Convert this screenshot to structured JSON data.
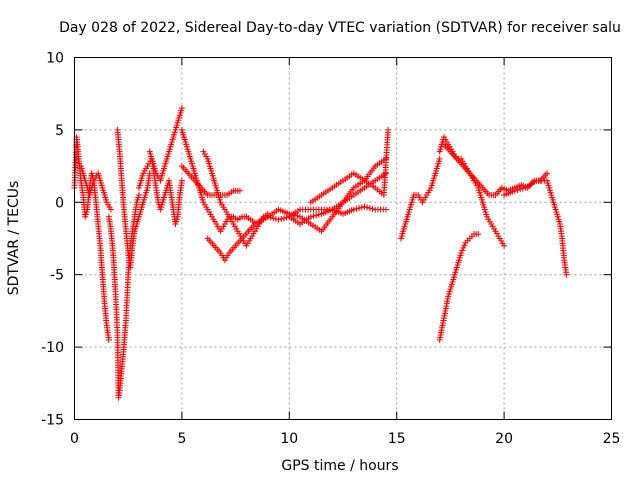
{
  "chart_data": {
    "type": "scatter",
    "title": "Day 028 of 2022, Sidereal Day-to-day VTEC variation (SDTVAR) for receiver salu",
    "xlabel": "GPS time / hours",
    "ylabel": "SDTVAR / TECUs",
    "xlim": [
      0,
      25
    ],
    "ylim": [
      -15,
      10
    ],
    "xticks": [
      "0",
      "5",
      "10",
      "15",
      "20",
      "25"
    ],
    "yticks": [
      "-15",
      "-10",
      "-5",
      "0",
      "5",
      "10"
    ],
    "grid": true,
    "marker": "+",
    "color": "#ff0000",
    "series": [
      {
        "name": "t1",
        "x": [
          0.0,
          0.1,
          0.2,
          0.3,
          0.4,
          0.5,
          0.6,
          0.7,
          0.8,
          0.9,
          1.0,
          1.1,
          1.2,
          1.3,
          1.4,
          1.5,
          1.6
        ],
        "y": [
          1.0,
          4.5,
          3.0,
          1.5,
          0.5,
          -1.0,
          -0.5,
          1.0,
          2.0,
          1.5,
          0.0,
          -1.5,
          -3.0,
          -5.0,
          -7.0,
          -8.5,
          -9.5
        ]
      },
      {
        "name": "t2",
        "x": [
          0.3,
          0.5,
          0.7,
          0.9,
          1.1,
          1.3,
          1.5,
          1.7
        ],
        "y": [
          2.5,
          1.5,
          0.5,
          1.5,
          2.0,
          1.0,
          0.0,
          -0.5
        ]
      },
      {
        "name": "t3",
        "x": [
          1.6,
          1.7,
          1.8,
          1.9,
          2.0,
          2.05,
          2.1,
          2.2,
          2.3,
          2.4,
          2.5,
          2.6,
          2.7,
          2.8,
          2.9,
          3.0
        ],
        "y": [
          -1.0,
          -2.0,
          -3.5,
          -6.0,
          -9.0,
          -13.5,
          -13.0,
          -11.5,
          -10.0,
          -8.0,
          -5.0,
          -3.0,
          -2.0,
          -1.0,
          0.0,
          0.5
        ]
      },
      {
        "name": "t4",
        "x": [
          2.0,
          2.1,
          2.2,
          2.3,
          2.4,
          2.5,
          2.6,
          2.7,
          2.8,
          2.9,
          3.0,
          3.1,
          3.2,
          3.3,
          3.4,
          3.5
        ],
        "y": [
          5.0,
          3.5,
          1.5,
          -0.5,
          -2.0,
          -3.5,
          -4.5,
          -3.0,
          -2.0,
          -1.5,
          -1.0,
          -0.5,
          0.0,
          0.5,
          1.0,
          2.0
        ]
      },
      {
        "name": "t5",
        "x": [
          3.0,
          3.2,
          3.4,
          3.6,
          3.8,
          4.0,
          4.2,
          4.4,
          4.6,
          4.8,
          5.0
        ],
        "y": [
          1.0,
          2.0,
          2.5,
          3.0,
          2.0,
          1.5,
          2.5,
          3.5,
          4.5,
          5.5,
          6.5
        ]
      },
      {
        "name": "t6",
        "x": [
          3.5,
          3.6,
          3.7,
          3.8,
          3.9,
          4.0,
          4.2,
          4.4,
          4.5,
          4.6,
          4.7,
          4.8,
          4.9,
          5.0
        ],
        "y": [
          3.5,
          3.0,
          2.0,
          1.0,
          0.0,
          -0.5,
          0.5,
          1.5,
          0.5,
          -0.5,
          -1.5,
          -1.0,
          0.5,
          1.5
        ]
      },
      {
        "name": "t7",
        "x": [
          5.0,
          5.2,
          5.4,
          5.6,
          5.8,
          6.0,
          6.2,
          6.4,
          6.6,
          6.8,
          7.0,
          7.2,
          7.4,
          7.6,
          7.8,
          8.0
        ],
        "y": [
          5.0,
          4.0,
          3.0,
          2.0,
          1.0,
          0.0,
          -0.5,
          -1.0,
          -1.5,
          -2.0,
          -1.5,
          -1.0,
          -1.0,
          -1.2,
          -1.0,
          -1.0
        ]
      },
      {
        "name": "t8",
        "x": [
          5.0,
          5.3,
          5.6,
          5.9,
          6.2,
          6.5,
          6.8,
          7.1,
          7.4,
          7.7
        ],
        "y": [
          2.5,
          2.0,
          1.5,
          1.0,
          0.5,
          0.5,
          0.5,
          0.5,
          0.8,
          0.8
        ]
      },
      {
        "name": "t9",
        "x": [
          6.0,
          6.2,
          6.4,
          6.6,
          6.8,
          7.0,
          7.2,
          7.4,
          7.6,
          7.8,
          8.0,
          8.2,
          8.4,
          8.6,
          8.8,
          9.0
        ],
        "y": [
          3.5,
          3.0,
          2.0,
          1.0,
          0.0,
          -0.5,
          -1.0,
          -1.5,
          -2.0,
          -2.5,
          -3.0,
          -2.5,
          -2.0,
          -1.5,
          -1.0,
          -0.8
        ]
      },
      {
        "name": "t10",
        "x": [
          6.2,
          6.5,
          6.8,
          7.0,
          7.2,
          7.5,
          7.8,
          8.1,
          8.4,
          8.7,
          9.0
        ],
        "y": [
          -2.5,
          -3.0,
          -3.5,
          -4.0,
          -3.5,
          -3.0,
          -2.5,
          -2.0,
          -1.5,
          -1.2,
          -1.0
        ]
      },
      {
        "name": "t11",
        "x": [
          8.0,
          8.5,
          9.0,
          9.5,
          10.0,
          10.5,
          11.0,
          11.5,
          12.0,
          12.5,
          13.0,
          13.5,
          14.0,
          14.5
        ],
        "y": [
          -1.0,
          -1.5,
          -1.0,
          -1.2,
          -1.0,
          -1.5,
          -1.0,
          -0.8,
          -0.5,
          0.0,
          0.5,
          1.0,
          1.5,
          2.0
        ]
      },
      {
        "name": "t12",
        "x": [
          9.0,
          9.5,
          10.0,
          10.5,
          11.0,
          11.5,
          12.0,
          12.5,
          13.0,
          13.5,
          14.0,
          14.5
        ],
        "y": [
          -1.0,
          -0.5,
          -0.8,
          -1.0,
          -1.5,
          -2.0,
          -1.0,
          0.0,
          1.0,
          1.5,
          2.5,
          3.0
        ]
      },
      {
        "name": "t13",
        "x": [
          10.0,
          10.5,
          11.0,
          11.5,
          12.0,
          12.5,
          13.0,
          13.5,
          14.0,
          14.5
        ],
        "y": [
          -1.0,
          -0.5,
          -0.5,
          -0.5,
          -0.5,
          -0.8,
          -0.5,
          -0.3,
          -0.5,
          -0.5
        ]
      },
      {
        "name": "t14",
        "x": [
          11.0,
          11.5,
          12.0,
          12.5,
          13.0,
          13.5,
          14.0,
          14.4,
          14.6
        ],
        "y": [
          0.0,
          0.5,
          1.0,
          1.5,
          2.0,
          1.5,
          1.0,
          0.5,
          5.0
        ]
      },
      {
        "name": "t15",
        "x": [
          15.2,
          15.4,
          15.6,
          15.8,
          16.0,
          16.2,
          16.4,
          16.6,
          16.8,
          17.0
        ],
        "y": [
          -2.5,
          -1.5,
          -0.5,
          0.5,
          0.5,
          0.0,
          0.5,
          1.0,
          2.0,
          3.0
        ]
      },
      {
        "name": "t16",
        "x": [
          17.0,
          17.2,
          17.4,
          17.6,
          17.8,
          18.0,
          18.2,
          18.4,
          18.6,
          18.8,
          19.0,
          19.2,
          19.4,
          19.6,
          19.8,
          20.0
        ],
        "y": [
          3.5,
          4.5,
          4.0,
          3.5,
          3.0,
          3.0,
          2.5,
          2.0,
          1.5,
          1.0,
          0.0,
          -1.0,
          -1.5,
          -2.0,
          -2.5,
          -3.0
        ]
      },
      {
        "name": "t17",
        "x": [
          17.2,
          17.5,
          17.8,
          18.1,
          18.4,
          18.7,
          19.0,
          19.3,
          19.6,
          19.9,
          20.2,
          20.5,
          20.8,
          21.1,
          21.4,
          21.7,
          22.0
        ],
        "y": [
          4.0,
          3.5,
          3.0,
          2.5,
          2.0,
          1.5,
          1.0,
          0.5,
          0.5,
          1.0,
          0.8,
          1.0,
          1.2,
          1.0,
          1.5,
          1.5,
          2.0
        ]
      },
      {
        "name": "t18",
        "x": [
          17.0,
          17.2,
          17.4,
          17.6,
          17.8,
          18.0,
          18.2,
          18.4,
          18.6,
          18.8
        ],
        "y": [
          -9.5,
          -8.0,
          -6.5,
          -5.5,
          -4.5,
          -3.5,
          -2.8,
          -2.5,
          -2.2,
          -2.2
        ]
      },
      {
        "name": "t19",
        "x": [
          20.0,
          20.5,
          21.0,
          21.5,
          22.0,
          22.2,
          22.4,
          22.6,
          22.7,
          22.8,
          22.9
        ],
        "y": [
          0.5,
          0.8,
          1.0,
          1.5,
          1.5,
          0.5,
          -0.5,
          -1.5,
          -2.5,
          -4.0,
          -5.0
        ]
      }
    ]
  }
}
